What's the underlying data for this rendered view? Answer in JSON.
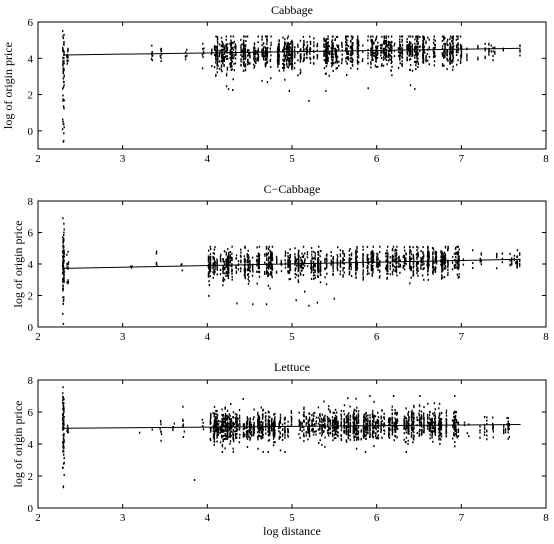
{
  "chart_data": [
    {
      "type": "scatter",
      "title": "Cabbage",
      "xlabel": "",
      "ylabel": "log of origin price",
      "xlim": [
        2,
        8
      ],
      "ylim": [
        -1,
        6
      ],
      "xticks": [
        2,
        3,
        4,
        5,
        6,
        7,
        8
      ],
      "yticks": [
        0,
        2,
        4,
        6
      ],
      "grid": false,
      "legend": "none",
      "fit_line": {
        "x": [
          2.3,
          7.7
        ],
        "y": [
          4.18,
          4.55
        ]
      },
      "clusters": [
        {
          "x": 2.3,
          "y_min": -0.7,
          "y_max": 5.5,
          "center": 4.2,
          "count": 60
        },
        {
          "x": 2.35,
          "y_min": 3.2,
          "y_max": 4.8,
          "center": 4.2,
          "count": 12
        },
        {
          "x": 3.35,
          "y_min": 3.6,
          "y_max": 5.0,
          "center": 4.3,
          "count": 8
        },
        {
          "x": 3.45,
          "y_min": 3.5,
          "y_max": 5.0,
          "center": 4.3,
          "count": 8
        },
        {
          "x": 3.75,
          "y_min": 3.5,
          "y_max": 5.0,
          "center": 4.3,
          "count": 6
        },
        {
          "x": 3.95,
          "y_min": 3.4,
          "y_max": 5.0,
          "center": 4.3,
          "count": 8
        }
      ],
      "band": {
        "x_min": 4.05,
        "x_max": 7.0,
        "y_min": 2.2,
        "y_max": 5.2,
        "center_start": 4.25,
        "center_end": 4.45,
        "count": 1900
      },
      "tail": {
        "x_min": 7.0,
        "x_max": 7.7,
        "y_min": 3.9,
        "y_max": 4.8,
        "count": 60
      },
      "outliers": [
        {
          "x": 4.25,
          "y": 2.3
        },
        {
          "x": 4.3,
          "y": 2.25
        },
        {
          "x": 5.2,
          "y": 1.65
        },
        {
          "x": 5.4,
          "y": 2.2
        },
        {
          "x": 5.9,
          "y": 2.35
        },
        {
          "x": 6.45,
          "y": 2.3
        },
        {
          "x": 4.75,
          "y": 2.9
        },
        {
          "x": 2.3,
          "y": -0.6
        }
      ]
    },
    {
      "type": "scatter",
      "title": "C−Cabbage",
      "xlabel": "",
      "ylabel": "log of origin price",
      "xlim": [
        2,
        8
      ],
      "ylim": [
        0,
        8
      ],
      "xticks": [
        2,
        3,
        4,
        5,
        6,
        7,
        8
      ],
      "yticks": [
        0,
        2,
        4,
        6,
        8
      ],
      "grid": false,
      "legend": "none",
      "fit_line": {
        "x": [
          2.3,
          7.7
        ],
        "y": [
          3.72,
          4.3
        ]
      },
      "clusters": [
        {
          "x": 2.3,
          "y_min": 0.3,
          "y_max": 7.0,
          "center": 3.7,
          "count": 80
        },
        {
          "x": 2.35,
          "y_min": 2.5,
          "y_max": 5.0,
          "center": 3.7,
          "count": 15
        },
        {
          "x": 3.1,
          "y_min": 3.5,
          "y_max": 4.0,
          "center": 3.8,
          "count": 3
        },
        {
          "x": 3.4,
          "y_min": 3.3,
          "y_max": 4.8,
          "center": 3.8,
          "count": 5
        },
        {
          "x": 3.7,
          "y_min": 3.5,
          "y_max": 4.2,
          "center": 3.85,
          "count": 3
        }
      ],
      "band": {
        "x_min": 4.0,
        "x_max": 7.0,
        "y_min": 1.3,
        "y_max": 5.1,
        "center_start": 3.9,
        "center_end": 4.2,
        "count": 1700
      },
      "tail": {
        "x_min": 7.0,
        "x_max": 7.7,
        "y_min": 3.5,
        "y_max": 4.9,
        "count": 60
      },
      "outliers": [
        {
          "x": 4.35,
          "y": 1.5
        },
        {
          "x": 4.7,
          "y": 1.45
        },
        {
          "x": 5.2,
          "y": 1.35
        },
        {
          "x": 5.5,
          "y": 1.8
        },
        {
          "x": 5.05,
          "y": 1.7
        },
        {
          "x": 5.3,
          "y": 1.55
        },
        {
          "x": 2.3,
          "y": 0.2
        }
      ]
    },
    {
      "type": "scatter",
      "title": "Lettuce",
      "xlabel": "log distance",
      "ylabel": "log of origin price",
      "xlim": [
        2,
        8
      ],
      "ylim": [
        0,
        8
      ],
      "xticks": [
        2,
        3,
        4,
        5,
        6,
        7,
        8
      ],
      "yticks": [
        0,
        2,
        4,
        6,
        8
      ],
      "grid": false,
      "legend": "none",
      "fit_line": {
        "x": [
          2.3,
          7.7
        ],
        "y": [
          4.98,
          5.22
        ]
      },
      "clusters": [
        {
          "x": 2.3,
          "y_min": 1.3,
          "y_max": 7.6,
          "center": 5.0,
          "count": 80
        },
        {
          "x": 2.35,
          "y_min": 4.3,
          "y_max": 5.6,
          "center": 5.0,
          "count": 10
        },
        {
          "x": 3.45,
          "y_min": 3.9,
          "y_max": 6.2,
          "center": 5.1,
          "count": 8
        },
        {
          "x": 3.6,
          "y_min": 4.5,
          "y_max": 5.7,
          "center": 5.1,
          "count": 5
        },
        {
          "x": 3.72,
          "y_min": 3.7,
          "y_max": 6.9,
          "center": 5.1,
          "count": 8
        },
        {
          "x": 3.95,
          "y_min": 4.5,
          "y_max": 5.8,
          "center": 5.1,
          "count": 5
        }
      ],
      "band": {
        "x_min": 4.0,
        "x_max": 6.95,
        "y_min": 3.5,
        "y_max": 7.0,
        "center_start": 5.05,
        "center_end": 5.2,
        "count": 2200
      },
      "tail": {
        "x_min": 6.95,
        "x_max": 7.7,
        "y_min": 4.3,
        "y_max": 5.8,
        "count": 70
      },
      "outliers": [
        {
          "x": 3.2,
          "y": 4.7
        },
        {
          "x": 3.35,
          "y": 4.9
        },
        {
          "x": 3.85,
          "y": 1.75
        },
        {
          "x": 2.3,
          "y": 1.3
        },
        {
          "x": 4.6,
          "y": 3.7
        },
        {
          "x": 6.2,
          "y": 7.0
        }
      ]
    }
  ],
  "colors": {
    "marker": "#000000",
    "axes": "#000000",
    "background": "#ffffff"
  }
}
